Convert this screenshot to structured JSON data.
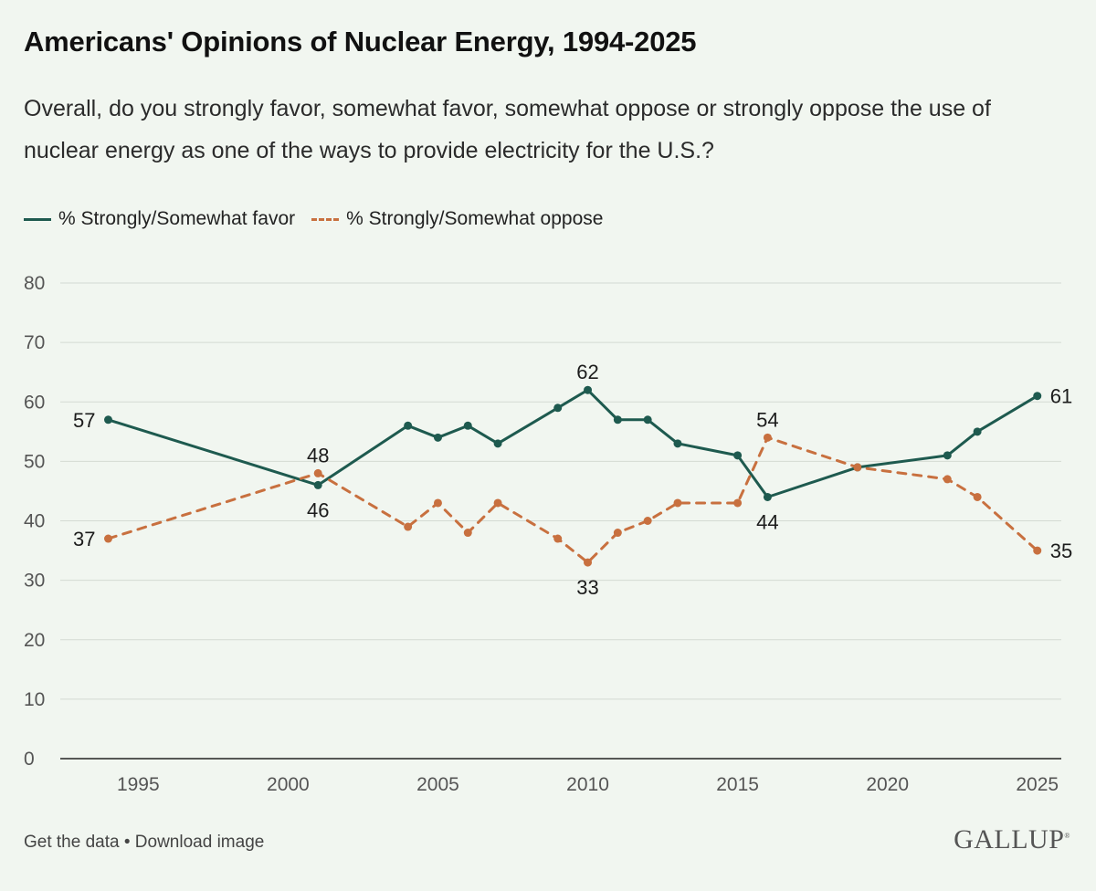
{
  "header": {
    "title": "Americans' Opinions of Nuclear Energy, 1994-2025",
    "subtitle": "Overall, do you strongly favor, somewhat favor, somewhat oppose or strongly oppose the use of nuclear energy as one of the ways to provide electricity for the U.S.?"
  },
  "footer": {
    "get_data": "Get the data",
    "separator": " • ",
    "download": "Download image",
    "brand": "GALLUP"
  },
  "colors": {
    "favor": "#1e5a4f",
    "oppose": "#c8703f",
    "background": "#f1f6f0",
    "grid": "#d4dad3"
  },
  "chart_data": {
    "type": "line",
    "title": "Americans' Opinions of Nuclear Energy, 1994-2025",
    "xlabel": "",
    "ylabel": "",
    "xlim": [
      1992.4,
      2025.8
    ],
    "ylim": [
      0,
      80
    ],
    "yticks": [
      0,
      10,
      20,
      30,
      40,
      50,
      60,
      70,
      80
    ],
    "xticks": [
      1995,
      2000,
      2005,
      2010,
      2015,
      2020,
      2025
    ],
    "grid": true,
    "legend_position": "top-left",
    "series": [
      {
        "name": "% Strongly/Somewhat favor",
        "style": "solid",
        "x": [
          1994,
          2001,
          2004,
          2005,
          2006,
          2007,
          2009,
          2010,
          2011,
          2012,
          2013,
          2015,
          2016,
          2019,
          2022,
          2023,
          2025
        ],
        "y": [
          57,
          46,
          56,
          54,
          56,
          53,
          59,
          62,
          57,
          57,
          53,
          51,
          44,
          49,
          51,
          55,
          61
        ],
        "labels": [
          {
            "x": 1994,
            "text": "57",
            "side": "left"
          },
          {
            "x": 2001,
            "text": "46",
            "side": "below"
          },
          {
            "x": 2010,
            "text": "62",
            "side": "above"
          },
          {
            "x": 2016,
            "text": "44",
            "side": "below"
          },
          {
            "x": 2025,
            "text": "61",
            "side": "right"
          }
        ]
      },
      {
        "name": "% Strongly/Somewhat oppose",
        "style": "dashed",
        "x": [
          1994,
          2001,
          2004,
          2005,
          2006,
          2007,
          2009,
          2010,
          2011,
          2012,
          2013,
          2015,
          2016,
          2019,
          2022,
          2023,
          2025
        ],
        "y": [
          37,
          48,
          39,
          43,
          38,
          43,
          37,
          33,
          38,
          40,
          43,
          43,
          54,
          49,
          47,
          44,
          35
        ],
        "labels": [
          {
            "x": 1994,
            "text": "37",
            "side": "left"
          },
          {
            "x": 2001,
            "text": "48",
            "side": "above"
          },
          {
            "x": 2010,
            "text": "33",
            "side": "below"
          },
          {
            "x": 2016,
            "text": "54",
            "side": "above"
          },
          {
            "x": 2025,
            "text": "35",
            "side": "right"
          }
        ]
      }
    ]
  }
}
